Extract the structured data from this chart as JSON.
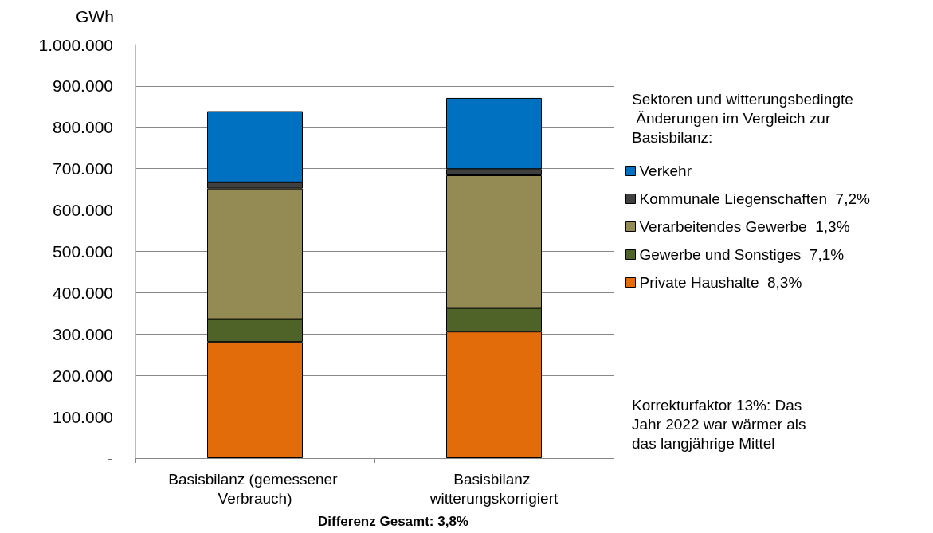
{
  "chart_data": {
    "type": "bar",
    "stacked": true,
    "ylabel": "GWh",
    "categories": [
      "Basisbilanz (gemessener Verbrauch)",
      "Basisbilanz witterungskorrigiert"
    ],
    "series": [
      {
        "name": "Private Haushalte  8,3%",
        "color": "#e36c0a",
        "values": [
          281000,
          306000
        ]
      },
      {
        "name": "Gewerbe und Sonstiges  7,1%",
        "color": "#4f6228",
        "values": [
          55000,
          57000
        ]
      },
      {
        "name": "Verarbeitendes Gewerbe  1,3%",
        "color": "#948a54",
        "values": [
          316000,
          321000
        ]
      },
      {
        "name": "Kommunale Liegenschaften  7,2%",
        "color": "#404040",
        "values": [
          15000,
          15000
        ]
      },
      {
        "name": "Verkehr",
        "color": "#0070c0",
        "values": [
          172000,
          172000
        ]
      }
    ],
    "ylim": [
      0,
      1000000
    ],
    "yticks": [
      {
        "value": 0,
        "label": "-"
      },
      {
        "value": 100000,
        "label": "100.000"
      },
      {
        "value": 200000,
        "label": "200.000"
      },
      {
        "value": 300000,
        "label": "300.000"
      },
      {
        "value": 400000,
        "label": "400.000"
      },
      {
        "value": 500000,
        "label": "500.000"
      },
      {
        "value": 600000,
        "label": "600.000"
      },
      {
        "value": 700000,
        "label": "700.000"
      },
      {
        "value": 800000,
        "label": "800.000"
      },
      {
        "value": 900000,
        "label": "900.000"
      },
      {
        "value": 1000000,
        "label": "1.000.000"
      }
    ],
    "grid": "y",
    "legend": "right",
    "legend_title": "Sektoren und witterungsbedingte Änderungen im Vergleich zur Basisbilanz:",
    "annotations": [
      "Korrekturfaktor 13%: Das Jahr 2022 war wärmer als das langjährige Mittel",
      "Differenz Gesamt: 3,8%"
    ]
  }
}
